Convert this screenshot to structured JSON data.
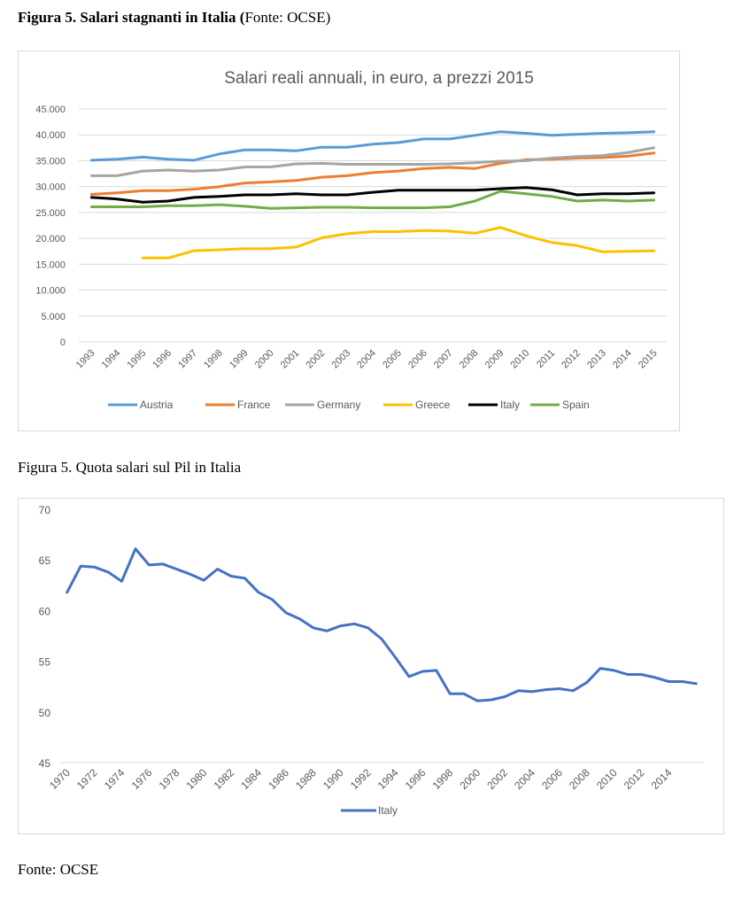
{
  "caption1": {
    "bold": "Figura 5. Salari stagnanti in Italia (",
    "normal": "Fonte: OCSE)"
  },
  "caption2": "Figura 5. Quota salari sul Pil in Italia",
  "source_note": "Fonte: OCSE",
  "chart_data": [
    {
      "type": "line",
      "title": "Salari reali annuali, in euro, a prezzi 2015",
      "xlabel": "",
      "ylabel": "",
      "ylim": [
        0,
        45000
      ],
      "yticks": [
        0,
        5000,
        10000,
        15000,
        20000,
        25000,
        30000,
        35000,
        40000,
        45000
      ],
      "ytick_labels": [
        "0",
        "5.000",
        "10.000",
        "15.000",
        "20.000",
        "25.000",
        "30.000",
        "35.000",
        "40.000",
        "45.000"
      ],
      "grid": true,
      "legend": "bottom",
      "x": [
        "1993",
        "1994",
        "1995",
        "1996",
        "1997",
        "1998",
        "1999",
        "2000",
        "2001",
        "2002",
        "2003",
        "2004",
        "2005",
        "2006",
        "2007",
        "2008",
        "2009",
        "2010",
        "2011",
        "2012",
        "2013",
        "2014",
        "2015"
      ],
      "series": [
        {
          "name": "Austria",
          "color": "#5b9bd5",
          "values": [
            35100,
            35300,
            35700,
            35300,
            35100,
            36300,
            37100,
            37100,
            36900,
            37600,
            37600,
            38200,
            38500,
            39200,
            39200,
            39900,
            40600,
            40300,
            39900,
            40100,
            40300,
            40400,
            40600
          ]
        },
        {
          "name": "France",
          "color": "#ed7d31",
          "values": [
            28500,
            28800,
            29200,
            29200,
            29500,
            30000,
            30700,
            30900,
            31200,
            31800,
            32100,
            32700,
            33000,
            33500,
            33700,
            33500,
            34500,
            35200,
            35300,
            35500,
            35600,
            35900,
            36500
          ]
        },
        {
          "name": "Germany",
          "color": "#a5a5a5",
          "values": [
            32100,
            32100,
            33000,
            33200,
            33000,
            33200,
            33800,
            33800,
            34400,
            34500,
            34300,
            34300,
            34300,
            34300,
            34400,
            34600,
            34900,
            35000,
            35500,
            35800,
            36000,
            36600,
            37500
          ]
        },
        {
          "name": "Greece",
          "color": "#ffc000",
          "values": [
            null,
            null,
            16200,
            16200,
            17600,
            17800,
            18000,
            18000,
            18300,
            20100,
            20900,
            21300,
            21300,
            21500,
            21400,
            21000,
            22100,
            20500,
            19200,
            18600,
            17400,
            17500,
            17600
          ]
        },
        {
          "name": "Italy",
          "color": "#000000",
          "values": [
            27900,
            27600,
            27000,
            27200,
            27900,
            28100,
            28400,
            28400,
            28600,
            28400,
            28400,
            28900,
            29300,
            29300,
            29300,
            29300,
            29600,
            29800,
            29400,
            28400,
            28600,
            28600,
            28800
          ]
        },
        {
          "name": "Spain",
          "color": "#70ad47",
          "values": [
            26100,
            26100,
            26100,
            26300,
            26300,
            26500,
            26200,
            25800,
            25900,
            26000,
            26000,
            25900,
            25900,
            25900,
            26100,
            27200,
            29100,
            28600,
            28100,
            27200,
            27400,
            27200,
            27400
          ]
        }
      ]
    },
    {
      "type": "line",
      "title": "",
      "xlabel": "",
      "ylabel": "",
      "ylim": [
        45,
        70
      ],
      "yticks": [
        45,
        50,
        55,
        60,
        65,
        70
      ],
      "ytick_labels": [
        "45",
        "50",
        "55",
        "60",
        "65",
        "70"
      ],
      "grid": false,
      "legend": "bottom",
      "x_start": 1970,
      "x_end": 2016,
      "xtick_labels": [
        "1970",
        "1972",
        "1974",
        "1976",
        "1978",
        "1980",
        "1982",
        "1984",
        "1986",
        "1988",
        "1990",
        "1992",
        "1994",
        "1996",
        "1998",
        "2000",
        "2002",
        "2004",
        "2006",
        "2008",
        "2010",
        "2012",
        "2014"
      ],
      "series": [
        {
          "name": "Italy",
          "color": "#4472c4",
          "values": [
            61.8,
            64.4,
            64.3,
            63.8,
            62.9,
            66.1,
            64.5,
            64.6,
            64.1,
            63.6,
            63.0,
            64.1,
            63.4,
            63.2,
            61.8,
            61.1,
            59.8,
            59.2,
            58.3,
            58.0,
            58.5,
            58.7,
            58.3,
            57.2,
            55.4,
            53.5,
            54.0,
            54.1,
            51.8,
            51.8,
            51.1,
            51.2,
            51.5,
            52.1,
            52.0,
            52.2,
            52.3,
            52.1,
            52.9,
            54.3,
            54.1,
            53.7,
            53.7,
            53.4,
            53.0,
            53.0,
            52.8
          ]
        }
      ]
    }
  ]
}
